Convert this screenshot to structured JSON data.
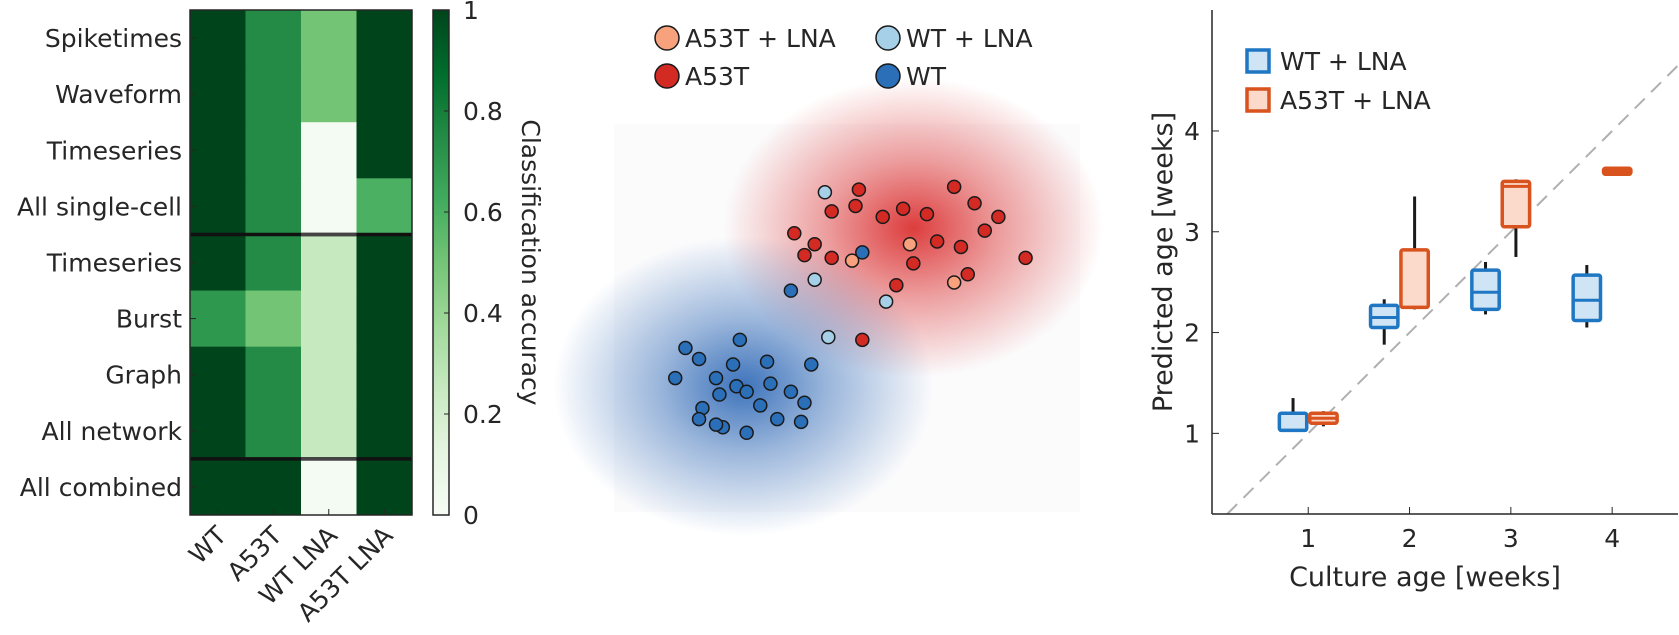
{
  "colors": {
    "wt": "#2a6fb8",
    "wt_light": "#a6cfe8",
    "a53t": "#d42a24",
    "a53t_light": "#f7a17d",
    "box_blue": "#1f77c4",
    "box_blue_fill": "#cfe4f4",
    "box_orange": "#d9531e",
    "box_orange_fill": "#fbdacb",
    "heat_min": "#f7fcf5",
    "heat_max": "#00441b"
  },
  "chart_data": [
    {
      "type": "heatmap",
      "rows": [
        "Spiketimes",
        "Waveform",
        "Timeseries",
        "All single-cell",
        "Timeseries",
        "Burst",
        "Graph",
        "All network",
        "All combined"
      ],
      "columns": [
        "WT",
        "A53T",
        "WT LNA",
        "A53T LNA"
      ],
      "values": [
        [
          1.0,
          0.75,
          0.5,
          1.0
        ],
        [
          1.0,
          0.75,
          0.5,
          1.0
        ],
        [
          1.0,
          0.75,
          0.02,
          1.0
        ],
        [
          1.0,
          0.75,
          0.02,
          0.6
        ],
        [
          1.0,
          0.75,
          0.25,
          1.0
        ],
        [
          0.7,
          0.5,
          0.25,
          1.0
        ],
        [
          1.0,
          0.75,
          0.25,
          1.0
        ],
        [
          1.0,
          0.75,
          0.25,
          1.0
        ],
        [
          1.0,
          1.0,
          0.02,
          1.0
        ]
      ],
      "group_separators_after_rows": [
        4,
        8
      ],
      "colorbar": {
        "label": "Classification accuracy",
        "range": [
          0,
          1
        ],
        "ticks": [
          0,
          0.2,
          0.4,
          0.6,
          0.8,
          1
        ],
        "tick_labels": [
          "0",
          "0.2",
          "0.4",
          "0.6",
          "0.8",
          "1"
        ]
      }
    },
    {
      "type": "scatter",
      "legend_placement": "top",
      "series": [
        {
          "name": "A53T + LNA",
          "color_key": "a53t_light",
          "points": [
            [
              7.5,
              7.0
            ],
            [
              5.8,
              6.4
            ],
            [
              8.8,
              5.6
            ]
          ]
        },
        {
          "name": "WT + LNA",
          "color_key": "wt_light",
          "points": [
            [
              5.0,
              8.9
            ],
            [
              4.7,
              5.7
            ],
            [
              6.8,
              4.9
            ],
            [
              5.1,
              3.6
            ]
          ]
        },
        {
          "name": "A53T",
          "color_key": "a53t",
          "points": [
            [
              6.0,
              9.0
            ],
            [
              4.1,
              7.4
            ],
            [
              4.7,
              7.0
            ],
            [
              5.2,
              8.2
            ],
            [
              5.9,
              8.4
            ],
            [
              6.7,
              8.0
            ],
            [
              7.3,
              8.3
            ],
            [
              8.0,
              8.1
            ],
            [
              8.8,
              9.1
            ],
            [
              9.4,
              8.5
            ],
            [
              10.1,
              8.0
            ],
            [
              9.7,
              7.5
            ],
            [
              9.0,
              6.9
            ],
            [
              8.3,
              7.1
            ],
            [
              4.4,
              6.6
            ],
            [
              5.2,
              6.5
            ],
            [
              9.2,
              5.9
            ],
            [
              7.6,
              6.3
            ],
            [
              10.9,
              6.5
            ],
            [
              7.1,
              5.5
            ],
            [
              6.1,
              3.5
            ]
          ]
        },
        {
          "name": "WT",
          "color_key": "wt",
          "points": [
            [
              6.1,
              6.7
            ],
            [
              4.0,
              5.3
            ],
            [
              0.9,
              3.2
            ],
            [
              1.3,
              2.8
            ],
            [
              2.5,
              3.5
            ],
            [
              2.3,
              2.6
            ],
            [
              3.3,
              2.7
            ],
            [
              4.6,
              2.6
            ],
            [
              0.6,
              2.1
            ],
            [
              1.8,
              2.1
            ],
            [
              2.4,
              1.8
            ],
            [
              3.4,
              1.9
            ],
            [
              1.9,
              1.5
            ],
            [
              2.7,
              1.6
            ],
            [
              4.0,
              1.6
            ],
            [
              4.4,
              1.2
            ],
            [
              1.4,
              1.0
            ],
            [
              3.1,
              1.1
            ],
            [
              1.3,
              0.6
            ],
            [
              3.6,
              0.6
            ],
            [
              4.3,
              0.5
            ],
            [
              2.0,
              0.3
            ],
            [
              2.7,
              0.1
            ],
            [
              1.8,
              0.4
            ]
          ]
        }
      ],
      "clouds": [
        {
          "color_key": "a53t",
          "center": [
            7.6,
            7.6
          ]
        },
        {
          "color_key": "wt",
          "center": [
            2.6,
            1.8
          ]
        }
      ]
    },
    {
      "type": "box",
      "xlabel": "Culture age [weeks]",
      "ylabel": "Predicted age [weeks]",
      "xlim": [
        0.05,
        4.65
      ],
      "ylim": [
        0.2,
        5.2
      ],
      "xticks": [
        1,
        2,
        3,
        4
      ],
      "yticks": [
        1,
        2,
        3,
        4
      ],
      "identity_line": true,
      "legend_placement": "top-left",
      "series": [
        {
          "name": "WT + LNA",
          "color_key": "box_blue",
          "fill_key": "box_blue_fill",
          "boxes": [
            {
              "x": 0.85,
              "min": 1.03,
              "q1": 1.03,
              "median": 1.03,
              "q3": 1.2,
              "max": 1.35
            },
            {
              "x": 1.75,
              "min": 1.88,
              "q1": 2.05,
              "median": 2.15,
              "q3": 2.27,
              "max": 2.33
            },
            {
              "x": 2.75,
              "min": 2.18,
              "q1": 2.23,
              "median": 2.4,
              "q3": 2.62,
              "max": 2.7
            },
            {
              "x": 3.75,
              "min": 2.05,
              "q1": 2.12,
              "median": 2.32,
              "q3": 2.57,
              "max": 2.67
            }
          ]
        },
        {
          "name": "A53T + LNA",
          "color_key": "box_orange",
          "fill_key": "box_orange_fill",
          "boxes": [
            {
              "x": 1.15,
              "min": 1.07,
              "q1": 1.1,
              "median": 1.15,
              "q3": 1.2,
              "max": 1.22
            },
            {
              "x": 2.05,
              "min": 2.23,
              "q1": 2.25,
              "median": 2.25,
              "q3": 2.82,
              "max": 3.35
            },
            {
              "x": 3.05,
              "min": 2.75,
              "q1": 3.05,
              "median": 3.45,
              "q3": 3.5,
              "max": 3.52
            },
            {
              "x": 4.05,
              "min": 3.56,
              "q1": 3.57,
              "median": 3.6,
              "q3": 3.63,
              "max": 3.64
            }
          ]
        }
      ]
    }
  ]
}
